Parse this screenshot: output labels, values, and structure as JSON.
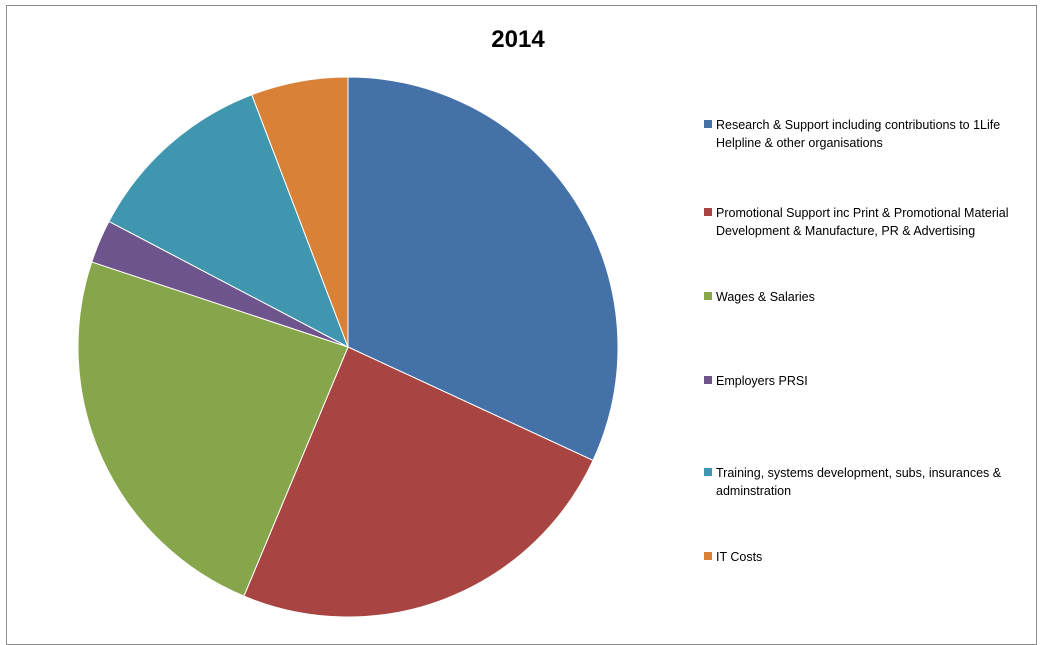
{
  "chart_data": {
    "type": "pie",
    "title": "2014",
    "legend_position": "right",
    "slices": [
      {
        "label": "Research & Support including contributions to 1Life Helpline & other organisations",
        "value": 31.9,
        "color": "#4472A8"
      },
      {
        "label": "Promotional Support inc Print & Promotional Material Development & Manufacture, PR & Advertising",
        "value": 24.4,
        "color": "#A84542"
      },
      {
        "label": "Wages & Salaries",
        "value": 23.8,
        "color": "#87A54A"
      },
      {
        "label": "Employers PRSI",
        "value": 2.6,
        "color": "#6E548D"
      },
      {
        "label": "Training, systems development, subs, insurances & adminstration",
        "value": 11.5,
        "color": "#3F96AE"
      },
      {
        "label": "IT Costs",
        "value": 5.8,
        "color": "#DA8138"
      }
    ]
  }
}
